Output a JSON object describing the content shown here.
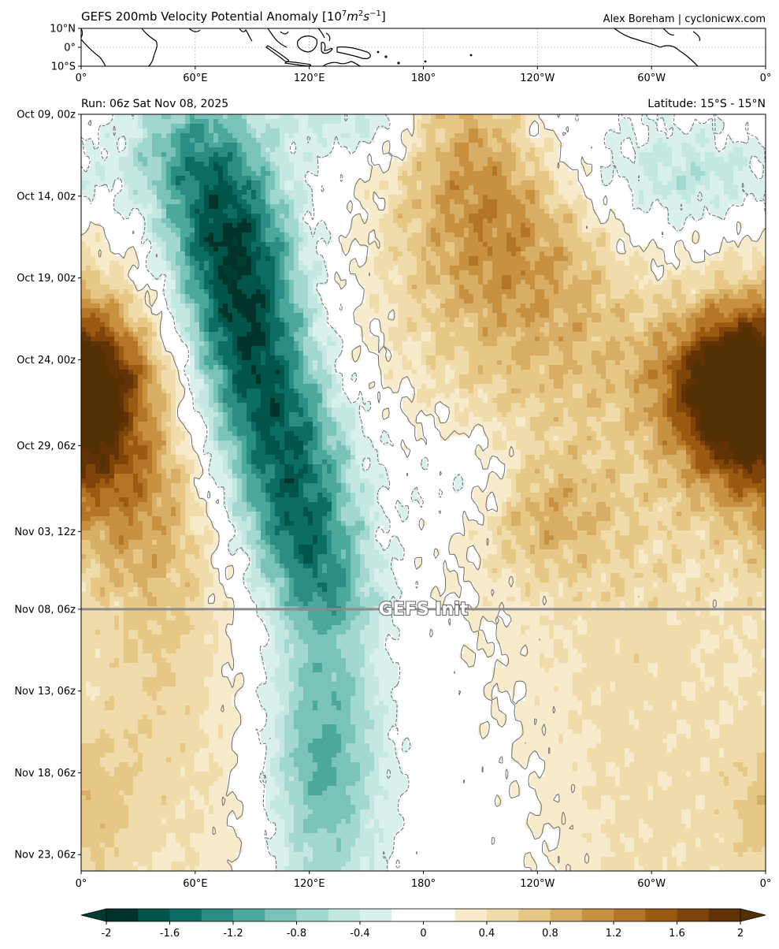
{
  "header": {
    "title_main": "GEFS 200mb Velocity Potential Anomaly ",
    "title_base": "10",
    "title_exp": "7",
    "title_m": "m",
    "title_m_exp": "2",
    "title_s": "s",
    "title_s_exp": "−1",
    "author": "Alex Boreham | cyclonicwx.com",
    "run": "Run: 06z Sat Nov 08, 2025",
    "latitude": "Latitude: 15°S - 15°N"
  },
  "map_panel": {
    "lat_labels": [
      "10°N",
      "0°",
      "10°S"
    ],
    "lon_labels": [
      "0°",
      "60°E",
      "120°E",
      "180°",
      "120°W",
      "60°W",
      "0°"
    ]
  },
  "chart_data": {
    "type": "heatmap",
    "x_label_ticks": [
      "0°",
      "60°E",
      "120°E",
      "180°",
      "120°W",
      "60°W",
      "0°"
    ],
    "x_ticks_deg": [
      0,
      60,
      120,
      180,
      240,
      300,
      360
    ],
    "xlim": [
      0,
      360
    ],
    "y_ticks": [
      "Oct 09, 00z",
      "Oct 14, 00z",
      "Oct 19, 00z",
      "Oct 24, 00z",
      "Oct 29, 06z",
      "Nov 03, 12z",
      "Nov 08, 06z",
      "Nov 13, 06z",
      "Nov 18, 06z",
      "Nov 23, 06z"
    ],
    "y_tick_days": [
      0,
      5,
      10,
      15,
      20.25,
      25.5,
      30.25,
      35.25,
      40.25,
      45.25
    ],
    "ylim_days": [
      0,
      46.25
    ],
    "init_line_day": 30.25,
    "init_label": "GEFS Init",
    "colorbar": {
      "levels": [
        -2,
        -1.8,
        -1.6,
        -1.4,
        -1.2,
        -1.0,
        -0.8,
        -0.6,
        -0.4,
        -0.2,
        0.2,
        0.4,
        0.6,
        0.8,
        1.0,
        1.2,
        1.4,
        1.6,
        1.8,
        2
      ],
      "colors": [
        "#01332b",
        "#01544a",
        "#0b6d64",
        "#2a8c82",
        "#4da89c",
        "#79c3b8",
        "#a3d8d0",
        "#c4e7e2",
        "#daf0ed",
        "#ffffff",
        "#f7ebcb",
        "#efdcaa",
        "#e6c786",
        "#d8ad66",
        "#c8913f",
        "#b47526",
        "#9b5a11",
        "#7e440a",
        "#613206"
      ],
      "extend_low": "#003c30",
      "extend_high": "#543005",
      "tick_labels": [
        "-2",
        "-1.6",
        "-1.2",
        "-0.8",
        "-0.4",
        "0",
        "0.4",
        "0.8",
        "1.2",
        "1.6",
        "2"
      ],
      "tick_values": [
        -2,
        -1.6,
        -1.2,
        -0.8,
        -0.4,
        0,
        0.4,
        0.8,
        1.2,
        1.6,
        2
      ]
    },
    "features": [
      {
        "kind": "band",
        "lon_at": [
          [
            0,
            60
          ],
          [
            5,
            74
          ],
          [
            10,
            82
          ],
          [
            15,
            90
          ],
          [
            20,
            104
          ],
          [
            25,
            115
          ],
          [
            30,
            127
          ],
          [
            35,
            128
          ],
          [
            40,
            128
          ],
          [
            46,
            128
          ]
        ],
        "amp_at": [
          [
            0,
            -0.9
          ],
          [
            3,
            -1.4
          ],
          [
            8,
            -1.95
          ],
          [
            14,
            -1.9
          ],
          [
            20,
            -1.7
          ],
          [
            26,
            -1.6
          ],
          [
            30,
            -1.3
          ],
          [
            32,
            -0.9
          ],
          [
            36,
            -1.0
          ],
          [
            40,
            -1.1
          ],
          [
            46,
            -0.7
          ]
        ],
        "width_at": [
          [
            0,
            26
          ],
          [
            10,
            24
          ],
          [
            20,
            26
          ],
          [
            30,
            22
          ],
          [
            46,
            22
          ]
        ]
      },
      {
        "kind": "band",
        "lon_at": [
          [
            0,
            3
          ],
          [
            10,
            3
          ],
          [
            18,
            5
          ],
          [
            22,
            20
          ],
          [
            30,
            42
          ],
          [
            46,
            60
          ]
        ],
        "amp_at": [
          [
            0,
            0.3
          ],
          [
            10,
            0.5
          ],
          [
            16,
            1.6
          ],
          [
            18,
            1.4
          ],
          [
            22,
            1.2
          ],
          [
            30,
            0.6
          ],
          [
            46,
            0.35
          ]
        ],
        "width_at": [
          [
            0,
            26
          ],
          [
            16,
            34
          ],
          [
            30,
            30
          ],
          [
            46,
            30
          ]
        ]
      },
      {
        "kind": "band",
        "lon_at": [
          [
            0,
            200
          ],
          [
            10,
            225
          ],
          [
            20,
            262
          ],
          [
            30,
            290
          ],
          [
            46,
            300
          ]
        ],
        "amp_at": [
          [
            0,
            0.9
          ],
          [
            6,
            1.2
          ],
          [
            10,
            1.1
          ],
          [
            15,
            0.8
          ],
          [
            20,
            0.55
          ],
          [
            30,
            0.5
          ],
          [
            46,
            0.45
          ]
        ],
        "width_at": [
          [
            0,
            24
          ],
          [
            15,
            60
          ],
          [
            30,
            60
          ],
          [
            46,
            40
          ]
        ]
      },
      {
        "kind": "blob",
        "lon": 345,
        "day": 17.5,
        "amp": 1.6,
        "slon": 25,
        "sday": 3.5
      },
      {
        "kind": "blob",
        "lon": 340,
        "day": 3.8,
        "amp": -0.7,
        "slon": 45,
        "sday": 2.5
      },
      {
        "kind": "blob",
        "lon": 205,
        "day": 22.5,
        "amp": -0.45,
        "slon": 22,
        "sday": 2.2
      },
      {
        "kind": "blob",
        "lon": 5,
        "day": 43,
        "amp": 0.5,
        "slon": 20,
        "sday": 4
      },
      {
        "kind": "blob",
        "lon": 240,
        "day": 24.5,
        "amp": 0.5,
        "slon": 25,
        "sday": 2.5
      },
      {
        "kind": "blob",
        "lon": 145,
        "day": 0.3,
        "amp": -0.5,
        "slon": 30,
        "sday": 1.5
      }
    ]
  }
}
